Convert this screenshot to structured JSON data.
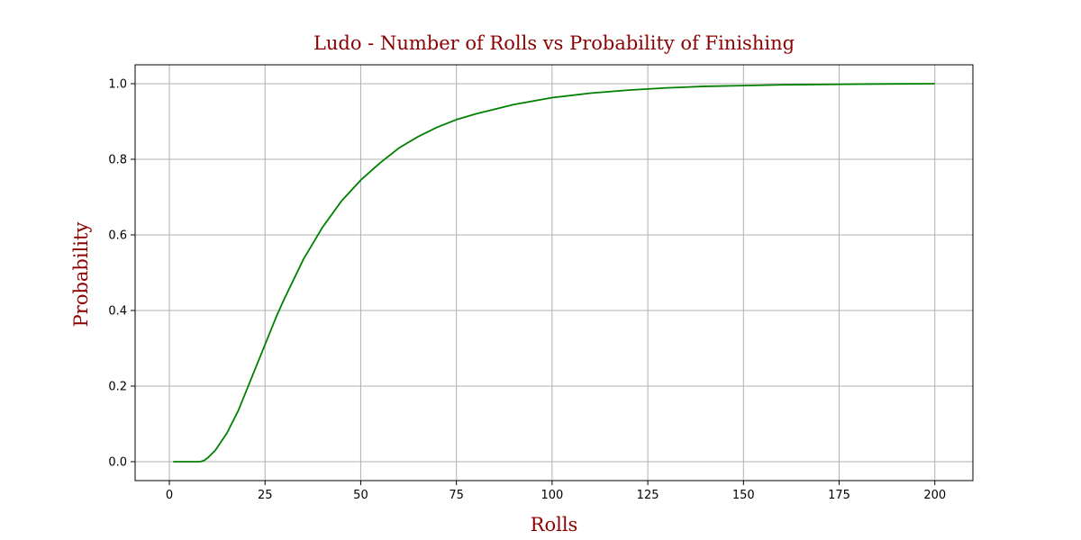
{
  "chart_data": {
    "type": "line",
    "title": "Ludo - Number of Rolls vs Probability of Finishing",
    "xlabel": "Rolls",
    "ylabel": "Probability",
    "xlim": [
      -8.95,
      209.95
    ],
    "ylim": [
      -0.05,
      1.05
    ],
    "xticks": [
      0,
      25,
      50,
      75,
      100,
      125,
      150,
      175,
      200
    ],
    "yticks": [
      0.0,
      0.2,
      0.4,
      0.6,
      0.8,
      1.0
    ],
    "xtick_labels": [
      "0",
      "25",
      "50",
      "75",
      "100",
      "125",
      "150",
      "175",
      "200"
    ],
    "ytick_labels": [
      "0.0",
      "0.2",
      "0.4",
      "0.6",
      "0.8",
      "1.0"
    ],
    "grid": true,
    "colors": {
      "line": "#008000",
      "text": "#8b0000",
      "grid": "#b0b0b0"
    },
    "series": [
      {
        "x": [
          1,
          5,
          8,
          9,
          10,
          12,
          15,
          18,
          20,
          22,
          25,
          28,
          30,
          35,
          40,
          45,
          50,
          55,
          60,
          65,
          70,
          75,
          80,
          90,
          100,
          110,
          120,
          130,
          140,
          150,
          160,
          170,
          180,
          190,
          200
        ],
        "values": [
          0.0,
          0.0,
          0.0,
          0.003,
          0.01,
          0.03,
          0.075,
          0.135,
          0.185,
          0.235,
          0.31,
          0.385,
          0.43,
          0.535,
          0.62,
          0.69,
          0.745,
          0.79,
          0.83,
          0.86,
          0.885,
          0.905,
          0.92,
          0.945,
          0.963,
          0.975,
          0.983,
          0.989,
          0.993,
          0.995,
          0.997,
          0.998,
          0.999,
          0.9995,
          1.0
        ]
      }
    ]
  }
}
